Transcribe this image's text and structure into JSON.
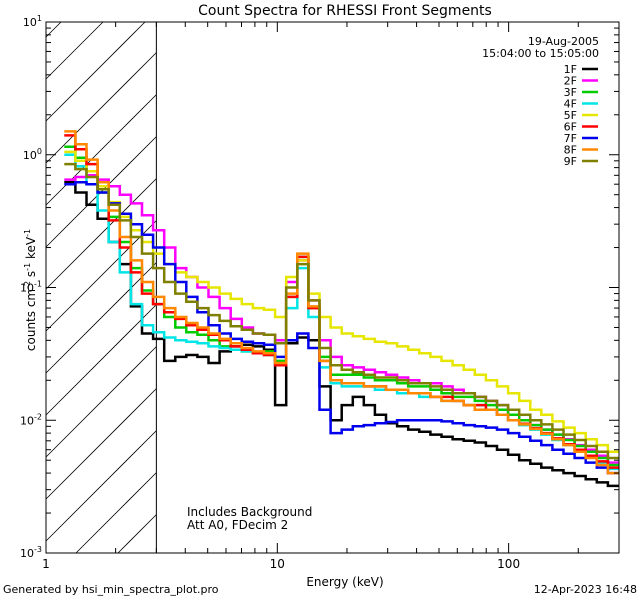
{
  "footer": {
    "generated_by": "Generated by hsi_min_spectra_plot.pro",
    "timestamp": "12-Apr-2023 16:48"
  },
  "chart_data": {
    "type": "line",
    "title": "Count Spectra for RHESSI Front Segments",
    "xlabel": "Energy (keV)",
    "ylabel_parts": [
      "counts cm",
      "-2",
      " s",
      "-1",
      " keV",
      "-1"
    ],
    "xscale": "log",
    "yscale": "log",
    "xlim": [
      1,
      300
    ],
    "ylim": [
      0.001,
      10
    ],
    "x_tick_labels": [
      {
        "value": 1,
        "label": "1"
      },
      {
        "value": 10,
        "label": "10"
      },
      {
        "value": 100,
        "label": "100"
      }
    ],
    "y_tick_labels": [
      {
        "exp": -3,
        "label": "10",
        "sup": "-3"
      },
      {
        "exp": -2,
        "label": "10",
        "sup": "-2"
      },
      {
        "exp": -1,
        "label": "10",
        "sup": "-1"
      },
      {
        "exp": 0,
        "label": "10",
        "sup": "0"
      },
      {
        "exp": 1,
        "label": "10",
        "sup": "1"
      }
    ],
    "date": "19-Aug-2005",
    "time_range": "15:04:00 to 15:05:00",
    "excluded_region_below_keV": 3,
    "annotations": [
      "Includes Background",
      "Att A0, FDecim 2"
    ],
    "legend_position": "top-right",
    "series": [
      {
        "name": "1F",
        "color": "#000000",
        "values": [
          0.62,
          0.52,
          0.42,
          0.33,
          0.22,
          0.15,
          0.072,
          0.045,
          0.041,
          0.028,
          0.03,
          0.031,
          0.03,
          0.027,
          0.033,
          0.036,
          0.037,
          0.036,
          0.034,
          0.013,
          0.038,
          0.042,
          0.04,
          0.018,
          0.01,
          0.013,
          0.015,
          0.013,
          0.011,
          0.0095,
          0.009,
          0.0085,
          0.0082,
          0.0078,
          0.0075,
          0.0072,
          0.007,
          0.0068,
          0.0064,
          0.006,
          0.0055,
          0.005,
          0.0047,
          0.0044,
          0.0042,
          0.004,
          0.0038,
          0.0036,
          0.0034,
          0.0032
        ]
      },
      {
        "name": "2F",
        "color": "#ff00ff",
        "values": [
          0.65,
          0.68,
          0.7,
          0.65,
          0.58,
          0.5,
          0.43,
          0.35,
          0.27,
          0.2,
          0.14,
          0.12,
          0.1,
          0.085,
          0.07,
          0.058,
          0.05,
          0.045,
          0.044,
          0.04,
          0.11,
          0.16,
          0.08,
          0.04,
          0.03,
          0.026,
          0.025,
          0.024,
          0.023,
          0.022,
          0.021,
          0.02,
          0.019,
          0.019,
          0.018,
          0.017,
          0.016,
          0.015,
          0.014,
          0.013,
          0.011,
          0.01,
          0.0092,
          0.0085,
          0.0078,
          0.0072,
          0.0065,
          0.006,
          0.0054,
          0.0048
        ]
      },
      {
        "name": "3F",
        "color": "#00cc00",
        "values": [
          1.15,
          0.95,
          0.75,
          0.52,
          0.34,
          0.22,
          0.14,
          0.095,
          0.075,
          0.06,
          0.05,
          0.046,
          0.044,
          0.04,
          0.036,
          0.034,
          0.033,
          0.032,
          0.033,
          0.028,
          0.085,
          0.17,
          0.07,
          0.03,
          0.022,
          0.022,
          0.022,
          0.021,
          0.02,
          0.02,
          0.019,
          0.018,
          0.018,
          0.017,
          0.016,
          0.015,
          0.015,
          0.014,
          0.013,
          0.012,
          0.011,
          0.01,
          0.0092,
          0.0085,
          0.0078,
          0.0071,
          0.0064,
          0.0058,
          0.0052,
          0.0046
        ]
      },
      {
        "name": "4F",
        "color": "#00e5e5",
        "values": [
          1.0,
          0.82,
          0.6,
          0.38,
          0.22,
          0.13,
          0.075,
          0.052,
          0.046,
          0.042,
          0.04,
          0.039,
          0.038,
          0.036,
          0.035,
          0.034,
          0.033,
          0.032,
          0.031,
          0.026,
          0.07,
          0.14,
          0.06,
          0.025,
          0.019,
          0.018,
          0.018,
          0.018,
          0.017,
          0.017,
          0.016,
          0.016,
          0.015,
          0.015,
          0.014,
          0.014,
          0.013,
          0.013,
          0.012,
          0.011,
          0.01,
          0.0092,
          0.0085,
          0.0078,
          0.0071,
          0.0065,
          0.0059,
          0.0053,
          0.0048,
          0.0043
        ]
      },
      {
        "name": "5F",
        "color": "#e6e600",
        "values": [
          1.05,
          0.9,
          0.75,
          0.58,
          0.44,
          0.34,
          0.27,
          0.22,
          0.18,
          0.15,
          0.13,
          0.12,
          0.11,
          0.1,
          0.09,
          0.082,
          0.075,
          0.07,
          0.068,
          0.06,
          0.12,
          0.16,
          0.09,
          0.06,
          0.05,
          0.045,
          0.043,
          0.041,
          0.039,
          0.038,
          0.036,
          0.034,
          0.032,
          0.03,
          0.028,
          0.026,
          0.024,
          0.022,
          0.02,
          0.018,
          0.016,
          0.014,
          0.012,
          0.011,
          0.0098,
          0.0088,
          0.008,
          0.0072,
          0.0065,
          0.0058
        ]
      },
      {
        "name": "6F",
        "color": "#ff0000",
        "values": [
          1.4,
          1.1,
          0.85,
          0.55,
          0.32,
          0.2,
          0.13,
          0.09,
          0.075,
          0.065,
          0.058,
          0.052,
          0.048,
          0.044,
          0.04,
          0.036,
          0.034,
          0.032,
          0.031,
          0.026,
          0.085,
          0.17,
          0.07,
          0.028,
          0.02,
          0.019,
          0.019,
          0.018,
          0.018,
          0.017,
          0.017,
          0.016,
          0.016,
          0.015,
          0.015,
          0.014,
          0.013,
          0.013,
          0.012,
          0.011,
          0.01,
          0.0094,
          0.0087,
          0.008,
          0.0073,
          0.0066,
          0.006,
          0.0054,
          0.0049,
          0.0044
        ]
      },
      {
        "name": "7F",
        "color": "#0000ee",
        "values": [
          0.6,
          0.62,
          0.6,
          0.52,
          0.43,
          0.36,
          0.3,
          0.25,
          0.2,
          0.15,
          0.11,
          0.085,
          0.065,
          0.052,
          0.045,
          0.041,
          0.039,
          0.038,
          0.037,
          0.03,
          0.04,
          0.045,
          0.035,
          0.012,
          0.008,
          0.0085,
          0.009,
          0.0092,
          0.0095,
          0.0097,
          0.01,
          0.01,
          0.01,
          0.01,
          0.0098,
          0.0095,
          0.0092,
          0.009,
          0.0088,
          0.0085,
          0.008,
          0.0075,
          0.007,
          0.0065,
          0.006,
          0.0056,
          0.0052,
          0.0048,
          0.0044,
          0.004
        ]
      },
      {
        "name": "8F",
        "color": "#ff8800",
        "values": [
          1.5,
          1.2,
          0.92,
          0.62,
          0.38,
          0.24,
          0.16,
          0.11,
          0.085,
          0.07,
          0.06,
          0.054,
          0.05,
          0.045,
          0.041,
          0.038,
          0.035,
          0.033,
          0.032,
          0.027,
          0.09,
          0.18,
          0.072,
          0.028,
          0.02,
          0.019,
          0.019,
          0.018,
          0.018,
          0.017,
          0.017,
          0.016,
          0.016,
          0.015,
          0.014,
          0.014,
          0.013,
          0.012,
          0.012,
          0.011,
          0.01,
          0.0093,
          0.0086,
          0.0079,
          0.0072,
          0.0065,
          0.0058,
          0.0052,
          0.0046,
          0.004
        ]
      },
      {
        "name": "9F",
        "color": "#808000",
        "values": [
          0.85,
          0.78,
          0.68,
          0.55,
          0.42,
          0.32,
          0.24,
          0.18,
          0.14,
          0.11,
          0.09,
          0.078,
          0.07,
          0.062,
          0.056,
          0.051,
          0.048,
          0.045,
          0.044,
          0.038,
          0.1,
          0.15,
          0.08,
          0.035,
          0.026,
          0.024,
          0.023,
          0.022,
          0.021,
          0.021,
          0.02,
          0.019,
          0.019,
          0.018,
          0.017,
          0.016,
          0.016,
          0.015,
          0.014,
          0.013,
          0.012,
          0.011,
          0.01,
          0.0093,
          0.0085,
          0.0078,
          0.0071,
          0.0064,
          0.0058,
          0.0052
        ]
      }
    ]
  }
}
